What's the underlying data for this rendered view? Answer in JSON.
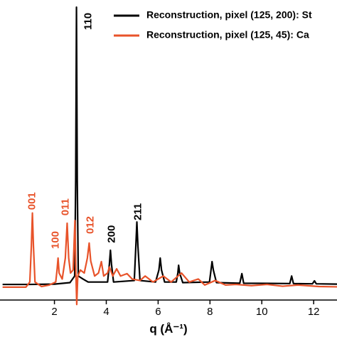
{
  "chart_data": {
    "type": "line",
    "x_label": "q (Å⁻¹)",
    "xlim": [
      -0.1,
      12.9
    ],
    "xticks": [
      2,
      4,
      6,
      8,
      10,
      12
    ],
    "ylim": [
      0,
      100
    ],
    "legend": "top-right",
    "series": [
      {
        "name": "Reconstruction, pixel (125, 200): St",
        "color": "#000000",
        "x": [
          0,
          1,
          2.0,
          2.6,
          2.78,
          2.82,
          2.85,
          2.88,
          2.92,
          3.1,
          3.3,
          4.05,
          4.12,
          4.16,
          4.2,
          4.28,
          5.08,
          5.14,
          5.18,
          5.22,
          5.3,
          5.9,
          6.03,
          6.08,
          6.13,
          6.25,
          6.7,
          6.76,
          6.79,
          6.83,
          6.95,
          7.98,
          8.04,
          8.08,
          8.13,
          8.25,
          9.15,
          9.23,
          9.3,
          11.08,
          11.15,
          11.22,
          11.95,
          12.03,
          12.1,
          12.9
        ],
        "values": [
          5.2,
          5.2,
          5.3,
          5.8,
          8,
          40,
          97.6,
          40,
          8,
          7,
          6,
          6,
          12,
          16.6,
          12,
          6,
          6.5,
          18,
          26,
          18,
          6.5,
          6,
          10,
          14,
          10,
          6,
          6,
          9,
          11.6,
          9,
          5.8,
          6,
          10,
          12.8,
          10,
          5.8,
          5.6,
          8.8,
          5.6,
          5.5,
          8,
          5.5,
          5.4,
          6.4,
          5.4,
          5.3
        ]
      },
      {
        "name": "Reconstruction, pixel (125, 45): Ca",
        "color": "#e8532a",
        "x": [
          0,
          0.9,
          1.05,
          1.11,
          1.15,
          1.19,
          1.25,
          1.5,
          1.8,
          2.05,
          2.1,
          2.14,
          2.18,
          2.3,
          2.42,
          2.49,
          2.55,
          2.62,
          2.72,
          2.79,
          2.83,
          2.86,
          2.9,
          3.0,
          3.15,
          3.27,
          3.34,
          3.4,
          3.55,
          3.7,
          3.81,
          3.9,
          4.05,
          4.12,
          4.25,
          4.4,
          4.55,
          4.8,
          5.0,
          5.3,
          5.5,
          5.8,
          6.2,
          6.5,
          6.9,
          7.2,
          7.55,
          7.8,
          8.2,
          8.6,
          9.0,
          9.6,
          10.2,
          10.8,
          11.4,
          12.2,
          12.9
        ],
        "values": [
          4.3,
          4.3,
          6,
          18,
          29,
          18,
          6,
          4.5,
          5,
          6,
          10,
          14,
          9,
          7,
          14,
          25.6,
          14,
          9,
          10,
          26.5,
          8,
          -1.5,
          8,
          10,
          9,
          14,
          19,
          13,
          8,
          9,
          12.8,
          8,
          9,
          11,
          8,
          10.4,
          8,
          8.8,
          7,
          6.5,
          8,
          6,
          8,
          6,
          9,
          6,
          7,
          5,
          6.5,
          5,
          5.2,
          4.8,
          5.2,
          4.6,
          5,
          4.5,
          4.4
        ]
      }
    ],
    "annotations": [
      {
        "text": "110",
        "x": 3.32,
        "y": 92.9,
        "color": "#000000"
      },
      {
        "text": "200",
        "x": 4.22,
        "y": 22,
        "color": "#000000"
      },
      {
        "text": "211",
        "x": 5.23,
        "y": 29.4,
        "color": "#000000"
      },
      {
        "text": "001",
        "x": 1.15,
        "y": 33,
        "color": "#e8532a"
      },
      {
        "text": "100",
        "x": 2.05,
        "y": 20,
        "color": "#e8532a"
      },
      {
        "text": "011",
        "x": 2.44,
        "y": 31,
        "color": "#e8532a"
      },
      {
        "text": "012",
        "x": 3.4,
        "y": 25,
        "color": "#e8532a"
      }
    ]
  }
}
